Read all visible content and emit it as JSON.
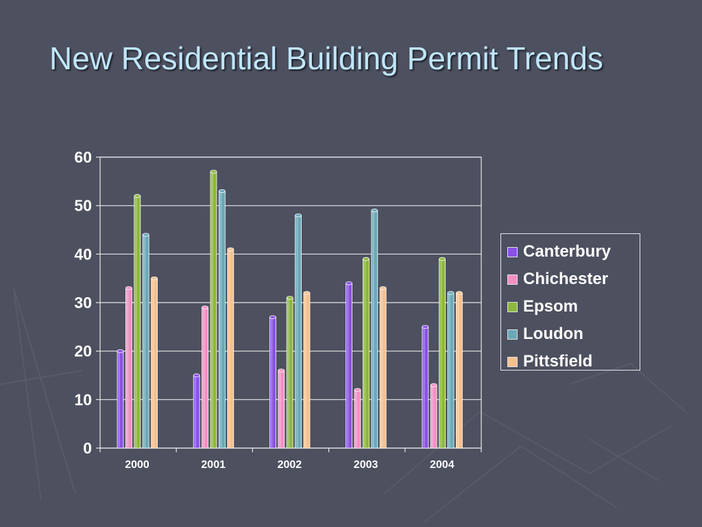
{
  "slide": {
    "title": "New Residential Building Permit Trends",
    "background_color": "#4d505f",
    "title_color": "#bfe6ff"
  },
  "chart_data": {
    "type": "bar",
    "title": "",
    "xlabel": "",
    "ylabel": "",
    "categories": [
      "2000",
      "2001",
      "2002",
      "2003",
      "2004"
    ],
    "ylim": [
      0,
      60
    ],
    "yticks": [
      0,
      10,
      20,
      30,
      40,
      50,
      60
    ],
    "grid": true,
    "legend_position": "right",
    "series": [
      {
        "name": "Canterbury",
        "color": "#8a52e6",
        "values": [
          20,
          15,
          27,
          34,
          25
        ]
      },
      {
        "name": "Chichester",
        "color": "#f58fc4",
        "values": [
          33,
          29,
          16,
          12,
          13
        ]
      },
      {
        "name": "Epsom",
        "color": "#8db83d",
        "values": [
          52,
          57,
          31,
          39,
          39
        ]
      },
      {
        "name": "Loudon",
        "color": "#6aaab8",
        "values": [
          44,
          53,
          48,
          49,
          32
        ]
      },
      {
        "name": "Pittsfield",
        "color": "#f7c08e",
        "values": [
          35,
          41,
          32,
          33,
          32
        ]
      }
    ]
  }
}
